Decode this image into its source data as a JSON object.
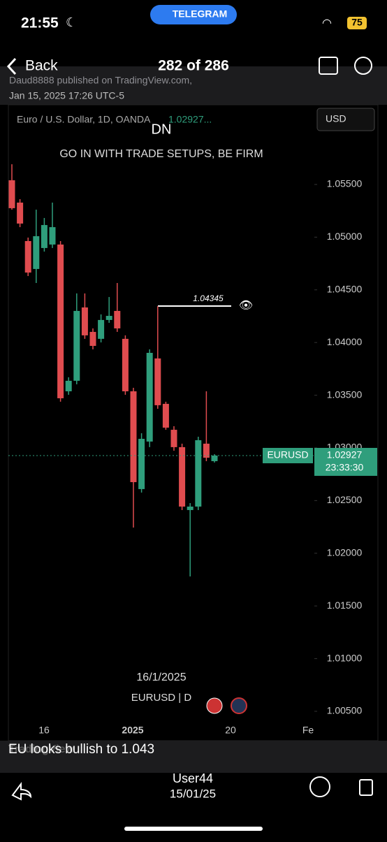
{
  "status_bar": {
    "time": "21:55",
    "badge": "TELEGRAM",
    "battery": "75"
  },
  "nav": {
    "back": "Back",
    "title": "282 of 286"
  },
  "attribution": {
    "line1": "Daud8888 published on TradingView.com,",
    "line2": "Jan 15, 2025 17:26 UTC-5"
  },
  "chart_header": {
    "symbol_text": "Euro / U.S. Dollar, 1D, OANDA",
    "price_text": "1.02927...",
    "currency": "USD"
  },
  "overlay": {
    "heading": "DN",
    "subheading": "GO IN WITH TRADE SETUPS, BE FIRM",
    "annotation": "1.04345",
    "date": "16/1/2025",
    "ticker": "EURUSD | D"
  },
  "price_tag": {
    "symbol": "EURUSD",
    "price": "1.02927",
    "countdown": "23:33:30"
  },
  "watermark": "TradingView",
  "caption": "EU looks bullish to 1.043",
  "footer": {
    "user": "User44",
    "date": "15/01/25"
  },
  "chart_data": {
    "type": "candlestick",
    "open": [
      1.0554,
      1.05328,
      1.04963,
      1.04698,
      1.04897,
      1.0493,
      1.0493,
      1.03537,
      1.03637,
      1.04333,
      1.04101,
      1.04035,
      1.04214,
      1.043,
      1.04035,
      1.03537,
      1.02609,
      1.0306,
      1.03849,
      1.03418,
      1.03172,
      1.03007,
      1.0241,
      1.02443,
      1.0304,
      1.02874
    ],
    "high": [
      1.05692,
      1.05361,
      1.04996,
      1.05261,
      1.05182,
      1.05328,
      1.04963,
      1.0367,
      1.04466,
      1.04466,
      1.04134,
      1.04267,
      1.04432,
      1.04565,
      1.04068,
      1.0357,
      1.03139,
      1.03935,
      1.04345,
      1.03438,
      1.03206,
      1.0304,
      1.02476,
      1.03106,
      1.03537,
      1.0294
    ],
    "low": [
      1.05261,
      1.05095,
      1.04631,
      1.04565,
      1.04863,
      1.04897,
      1.03438,
      1.03504,
      1.03603,
      1.04035,
      1.03935,
      1.04001,
      1.04187,
      1.04101,
      1.03504,
      1.02244,
      1.02576,
      1.03007,
      1.03371,
      1.03172,
      1.02973,
      1.0241,
      1.0178,
      1.0241,
      1.02874,
      1.02861
    ],
    "close": [
      1.05275,
      1.05129,
      1.04664,
      1.05009,
      1.05115,
      1.05095,
      1.03471,
      1.03637,
      1.043,
      1.04068,
      1.03968,
      1.04214,
      1.04253,
      1.04134,
      1.03537,
      1.02675,
      1.03086,
      1.03902,
      1.03405,
      1.03192,
      1.03007,
      1.02443,
      1.02443,
      1.03073,
      1.02907,
      1.02927
    ],
    "up_color": "#2f9e7c",
    "down_color": "#e04c4f",
    "ylim": [
      1.00387,
      1.06256
    ],
    "yticks": [
      {
        "value": 1.055,
        "label": "1.05500"
      },
      {
        "value": 1.05,
        "label": "1.05000"
      },
      {
        "value": 1.045,
        "label": "1.04500"
      },
      {
        "value": 1.04,
        "label": "1.04000"
      },
      {
        "value": 1.035,
        "label": "1.03500"
      },
      {
        "value": 1.03,
        "label": "1.03000"
      },
      {
        "value": 1.025,
        "label": "1.02500"
      },
      {
        "value": 1.02,
        "label": "1.02000"
      },
      {
        "value": 1.015,
        "label": "1.01500"
      },
      {
        "value": 1.01,
        "label": "1.01000"
      },
      {
        "value": 1.005,
        "label": "1.00500"
      }
    ],
    "x_labels": [
      "16",
      "2025",
      "20",
      "Fe"
    ],
    "last_price": 1.02927
  }
}
